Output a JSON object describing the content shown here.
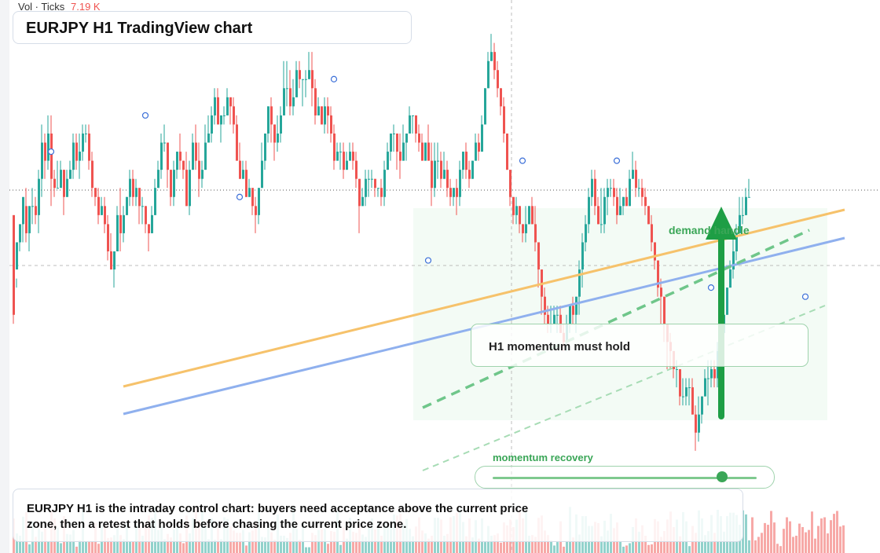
{
  "volume_label": "Vol · Ticks",
  "volume_value": "7.19 K",
  "title": "EURJPY H1 TradingView chart",
  "callout": "H1 momentum must hold",
  "demand_label": "demand handle",
  "momentum_label": "momentum recovery",
  "momentum_level": 0.87,
  "note": "EURJPY H1 is the intraday control chart: buyers need acceptance above the current price zone, then a retest that holds before chasing the current price zone.",
  "colors": {
    "up": "#26a69a",
    "down": "#ef5350",
    "orange_trend": "#f6c26b",
    "blue_trend": "#8fb0ee",
    "green": "#3aa657"
  },
  "icons": {
    "arrow": "arrow-up-icon"
  },
  "chart_data": {
    "type": "candlestick",
    "volume_unit": "Ticks",
    "candles": [
      [
        0.4,
        -0.7,
        -0.2,
        -0.8
      ],
      [
        -0.2,
        0.1,
        -0.3,
        -0.4
      ],
      [
        0.1,
        0.3,
        0.2,
        0.0
      ],
      [
        0.3,
        0.6,
        0.5,
        0.1
      ],
      [
        0.5,
        0.2,
        0.7,
        0.1
      ],
      [
        0.2,
        0.5,
        0.5,
        0.0
      ],
      [
        0.5,
        0.5,
        0.7,
        0.3
      ],
      [
        0.5,
        0.4,
        0.6,
        0.3
      ],
      [
        0.4,
        0.8,
        0.9,
        0.2
      ],
      [
        0.8,
        1.2,
        1.4,
        0.6
      ],
      [
        1.2,
        1.0,
        1.3,
        0.8
      ],
      [
        1.0,
        1.3,
        1.5,
        0.9
      ],
      [
        1.3,
        0.8,
        1.5,
        0.5
      ],
      [
        0.8,
        0.7,
        0.9,
        0.6
      ],
      [
        0.7,
        0.7,
        1.0,
        0.7
      ],
      [
        0.7,
        0.9,
        1.0,
        0.8
      ],
      [
        0.9,
        0.6,
        0.9,
        0.4
      ],
      [
        0.6,
        0.8,
        0.9,
        0.6
      ],
      [
        0.8,
        0.9,
        1.0,
        0.8
      ],
      [
        0.9,
        1.2,
        1.3,
        0.8
      ],
      [
        1.2,
        1.0,
        1.3,
        0.9
      ],
      [
        1.0,
        1.1,
        1.3,
        0.8
      ],
      [
        1.1,
        1.3,
        1.4,
        1.0
      ],
      [
        1.3,
        1.3,
        1.4,
        1.2
      ],
      [
        1.3,
        1.0,
        1.4,
        0.9
      ],
      [
        1.0,
        0.7,
        1.1,
        0.6
      ],
      [
        0.7,
        0.6,
        0.7,
        0.5
      ],
      [
        0.6,
        0.4,
        0.7,
        0.3
      ],
      [
        0.4,
        0.5,
        0.6,
        0.4
      ],
      [
        0.5,
        0.3,
        0.6,
        0.2
      ],
      [
        0.3,
        0.0,
        0.4,
        -0.1
      ],
      [
        0.0,
        -0.2,
        0.2,
        -0.2
      ],
      [
        -0.2,
        0.0,
        0.0,
        -0.4
      ],
      [
        0.0,
        0.4,
        0.5,
        0.0
      ],
      [
        0.4,
        0.2,
        0.7,
        0.0
      ],
      [
        0.2,
        0.4,
        0.5,
        0.1
      ],
      [
        0.4,
        0.6,
        0.6,
        0.4
      ],
      [
        0.6,
        0.8,
        0.9,
        0.5
      ],
      [
        0.8,
        0.6,
        0.9,
        0.5
      ],
      [
        0.6,
        0.7,
        0.8,
        0.5
      ],
      [
        0.7,
        0.5,
        0.7,
        0.3
      ],
      [
        0.5,
        0.5,
        0.6,
        0.3
      ],
      [
        0.5,
        0.3,
        0.5,
        0.2
      ],
      [
        0.3,
        0.2,
        0.3,
        0.0
      ],
      [
        0.2,
        0.4,
        0.5,
        0.2
      ],
      [
        0.4,
        0.7,
        0.8,
        0.4
      ],
      [
        0.7,
        0.9,
        1.0,
        0.7
      ],
      [
        0.9,
        1.2,
        1.3,
        0.8
      ],
      [
        1.2,
        1.2,
        1.4,
        1.1
      ],
      [
        1.2,
        0.9,
        1.2,
        0.7
      ],
      [
        0.9,
        0.6,
        0.9,
        0.5
      ],
      [
        0.6,
        0.9,
        1.0,
        0.5
      ],
      [
        0.9,
        1.1,
        1.1,
        0.8
      ],
      [
        1.1,
        1.0,
        1.3,
        0.9
      ],
      [
        1.0,
        0.9,
        1.0,
        0.8
      ],
      [
        0.9,
        0.5,
        1.1,
        0.5
      ],
      [
        0.5,
        0.9,
        1.0,
        0.4
      ],
      [
        0.9,
        1.2,
        1.3,
        0.9
      ],
      [
        1.2,
        1.0,
        1.4,
        0.9
      ],
      [
        1.0,
        0.8,
        1.2,
        0.6
      ],
      [
        0.8,
        0.9,
        1.0,
        0.7
      ],
      [
        0.9,
        1.2,
        1.4,
        0.9
      ],
      [
        1.2,
        1.3,
        1.5,
        1.2
      ],
      [
        1.3,
        1.5,
        1.6,
        1.2
      ],
      [
        1.5,
        1.7,
        1.8,
        1.4
      ],
      [
        1.7,
        1.4,
        1.8,
        1.4
      ],
      [
        1.4,
        1.5,
        1.5,
        1.2
      ],
      [
        1.5,
        1.5,
        1.6,
        1.4
      ],
      [
        1.5,
        1.7,
        1.8,
        1.5
      ],
      [
        1.7,
        1.6,
        1.7,
        1.4
      ],
      [
        1.6,
        1.4,
        1.7,
        1.3
      ],
      [
        1.4,
        1.0,
        1.5,
        1.0
      ],
      [
        1.0,
        0.8,
        1.2,
        0.8
      ],
      [
        0.8,
        0.9,
        1.0,
        0.8
      ],
      [
        0.9,
        0.6,
        1.0,
        0.6
      ],
      [
        0.6,
        0.7,
        0.8,
        0.6
      ],
      [
        0.7,
        0.5,
        0.7,
        0.4
      ],
      [
        0.5,
        0.4,
        0.6,
        0.2
      ],
      [
        0.4,
        0.7,
        0.7,
        0.3
      ],
      [
        0.7,
        1.0,
        1.2,
        0.7
      ],
      [
        1.0,
        1.3,
        1.3,
        0.9
      ],
      [
        1.3,
        1.6,
        1.6,
        1.2
      ],
      [
        1.6,
        1.4,
        1.7,
        1.2
      ],
      [
        1.4,
        1.2,
        1.4,
        1.0
      ],
      [
        1.2,
        1.3,
        1.5,
        1.1
      ],
      [
        1.3,
        1.5,
        1.6,
        1.2
      ],
      [
        1.5,
        1.8,
        2.1,
        1.5
      ],
      [
        1.8,
        1.8,
        2.1,
        1.6
      ],
      [
        1.8,
        1.6,
        2.0,
        1.5
      ],
      [
        1.6,
        1.7,
        1.9,
        1.5
      ],
      [
        1.7,
        2.0,
        2.1,
        1.7
      ],
      [
        2.0,
        1.9,
        2.1,
        1.8
      ],
      [
        1.9,
        1.9,
        1.9,
        1.6
      ],
      [
        1.9,
        1.9,
        2.0,
        1.7
      ],
      [
        1.9,
        2.0,
        2.2,
        1.9
      ],
      [
        2.0,
        1.8,
        2.2,
        1.6
      ],
      [
        1.8,
        1.5,
        1.9,
        1.4
      ],
      [
        1.5,
        1.6,
        1.7,
        1.5
      ],
      [
        1.6,
        1.4,
        1.6,
        1.4
      ],
      [
        1.4,
        1.6,
        1.7,
        1.3
      ],
      [
        1.6,
        1.5,
        1.7,
        1.3
      ],
      [
        1.5,
        1.3,
        1.6,
        1.2
      ],
      [
        1.3,
        1.0,
        1.4,
        0.9
      ],
      [
        1.0,
        1.1,
        1.2,
        1.0
      ],
      [
        1.1,
        1.1,
        1.2,
        0.9
      ],
      [
        1.1,
        0.9,
        1.2,
        0.8
      ],
      [
        0.9,
        1.0,
        1.1,
        0.9
      ],
      [
        1.0,
        1.1,
        1.2,
        1.0
      ],
      [
        1.1,
        1.0,
        1.2,
        0.9
      ],
      [
        1.0,
        0.8,
        1.1,
        0.7
      ],
      [
        0.8,
        0.5,
        0.8,
        0.2
      ],
      [
        0.5,
        0.6,
        0.7,
        0.5
      ],
      [
        0.6,
        0.8,
        0.9,
        0.5
      ],
      [
        0.8,
        0.8,
        0.9,
        0.6
      ],
      [
        0.8,
        0.8,
        0.9,
        0.7
      ],
      [
        0.8,
        0.7,
        0.8,
        0.6
      ],
      [
        0.7,
        0.7,
        0.7,
        0.6
      ],
      [
        0.7,
        0.6,
        0.8,
        0.5
      ],
      [
        0.6,
        0.9,
        1.0,
        0.5
      ],
      [
        0.9,
        1.1,
        1.2,
        0.9
      ],
      [
        1.1,
        1.3,
        1.3,
        1.0
      ],
      [
        1.3,
        1.3,
        1.4,
        1.1
      ],
      [
        1.3,
        1.1,
        1.3,
        0.9
      ],
      [
        1.1,
        1.0,
        1.3,
        0.8
      ],
      [
        1.0,
        1.2,
        1.4,
        1.0
      ],
      [
        1.2,
        1.3,
        1.3,
        1.0
      ],
      [
        1.3,
        1.5,
        1.6,
        1.3
      ],
      [
        1.5,
        1.5,
        1.5,
        1.3
      ],
      [
        1.5,
        1.3,
        1.5,
        1.2
      ],
      [
        1.3,
        1.2,
        1.4,
        1.1
      ],
      [
        1.2,
        1.0,
        1.3,
        1.0
      ],
      [
        1.0,
        1.2,
        1.2,
        1.0
      ],
      [
        1.2,
        1.0,
        1.4,
        1.0
      ],
      [
        1.0,
        0.7,
        1.2,
        0.5
      ],
      [
        0.7,
        1.0,
        1.2,
        0.6
      ],
      [
        1.0,
        1.0,
        1.2,
        0.8
      ],
      [
        1.0,
        0.8,
        1.1,
        0.7
      ],
      [
        0.8,
        0.9,
        1.1,
        0.8
      ],
      [
        0.9,
        0.7,
        1.0,
        0.6
      ],
      [
        0.7,
        0.6,
        0.8,
        0.5
      ],
      [
        0.6,
        0.7,
        0.7,
        0.5
      ],
      [
        0.7,
        0.6,
        0.8,
        0.4
      ],
      [
        0.6,
        0.9,
        1.0,
        0.5
      ],
      [
        0.9,
        1.1,
        1.1,
        0.8
      ],
      [
        1.1,
        0.9,
        1.2,
        0.8
      ],
      [
        0.9,
        0.8,
        1.0,
        0.7
      ],
      [
        0.8,
        1.0,
        1.0,
        0.8
      ],
      [
        1.0,
        1.2,
        1.3,
        1.0
      ],
      [
        1.2,
        1.1,
        1.3,
        1.0
      ],
      [
        1.1,
        1.4,
        1.5,
        1.1
      ],
      [
        1.4,
        1.8,
        1.8,
        1.4
      ],
      [
        1.8,
        2.1,
        2.2,
        1.8
      ],
      [
        2.1,
        2.2,
        2.4,
        2.1
      ],
      [
        2.2,
        2.0,
        2.3,
        1.9
      ],
      [
        2.0,
        1.8,
        2.1,
        1.7
      ],
      [
        1.8,
        1.6,
        1.8,
        1.5
      ],
      [
        1.6,
        1.3,
        1.7,
        1.2
      ],
      [
        1.3,
        0.9,
        1.3,
        0.9
      ],
      [
        0.9,
        0.6,
        0.9,
        0.5
      ],
      [
        0.6,
        0.4,
        0.6,
        0.3
      ],
      [
        0.4,
        0.5,
        0.6,
        0.3
      ],
      [
        0.5,
        0.3,
        0.5,
        0.2
      ],
      [
        0.3,
        0.2,
        0.3,
        0.1
      ],
      [
        0.2,
        0.3,
        0.5,
        0.1
      ],
      [
        0.3,
        0.5,
        0.5,
        0.3
      ],
      [
        0.5,
        0.3,
        0.6,
        0.3
      ],
      [
        0.3,
        0.1,
        0.5,
        0.0
      ],
      [
        0.1,
        -0.2,
        0.1,
        -0.4
      ],
      [
        -0.2,
        -0.5,
        -0.2,
        -0.7
      ],
      [
        -0.5,
        -0.7,
        -0.4,
        -0.8
      ],
      [
        -0.7,
        -0.8,
        -0.6,
        -0.9
      ],
      [
        -0.8,
        -0.8,
        -0.6,
        -0.9
      ],
      [
        -0.8,
        -0.7,
        -0.6,
        -0.8
      ],
      [
        -0.7,
        -0.7,
        -0.6,
        -0.9
      ],
      [
        -0.7,
        -0.9,
        -0.6,
        -0.9
      ],
      [
        -0.9,
        -1.0,
        -0.8,
        -1.1
      ],
      [
        -1.0,
        -0.8,
        -0.7,
        -1.1
      ],
      [
        -0.8,
        -0.6,
        -0.6,
        -0.9
      ],
      [
        -0.6,
        -0.7,
        -0.5,
        -0.8
      ],
      [
        -0.7,
        -0.5,
        -0.5,
        -0.9
      ],
      [
        -0.5,
        -0.2,
        -0.1,
        -0.7
      ],
      [
        -0.2,
        0.1,
        0.2,
        -0.4
      ],
      [
        0.1,
        0.3,
        0.4,
        0.0
      ],
      [
        0.3,
        0.6,
        0.7,
        0.2
      ],
      [
        0.6,
        0.8,
        0.9,
        0.5
      ],
      [
        0.8,
        0.5,
        0.9,
        0.4
      ],
      [
        0.5,
        0.3,
        0.6,
        0.3
      ],
      [
        0.3,
        0.3,
        0.7,
        0.2
      ],
      [
        0.3,
        0.6,
        0.7,
        0.2
      ],
      [
        0.6,
        0.7,
        0.8,
        0.4
      ],
      [
        0.7,
        0.7,
        0.8,
        0.6
      ],
      [
        0.7,
        0.6,
        0.8,
        0.5
      ],
      [
        0.6,
        0.4,
        0.7,
        0.3
      ],
      [
        0.4,
        0.5,
        0.7,
        0.4
      ],
      [
        0.5,
        0.6,
        0.6,
        0.4
      ],
      [
        0.6,
        0.5,
        0.7,
        0.5
      ],
      [
        0.5,
        0.8,
        0.9,
        0.5
      ],
      [
        0.8,
        0.9,
        1.1,
        0.8
      ],
      [
        0.9,
        0.7,
        1.0,
        0.6
      ],
      [
        0.7,
        0.7,
        0.8,
        0.6
      ],
      [
        0.7,
        0.6,
        0.8,
        0.5
      ],
      [
        0.6,
        0.5,
        0.7,
        0.4
      ],
      [
        0.5,
        0.3,
        0.5,
        0.3
      ],
      [
        0.3,
        0.1,
        0.4,
        0.0
      ],
      [
        0.1,
        -0.1,
        0.1,
        -0.2
      ],
      [
        -0.1,
        -0.4,
        -0.1,
        -0.5
      ],
      [
        -0.4,
        -0.5,
        -0.3,
        -0.8
      ],
      [
        -0.5,
        -0.8,
        -0.5,
        -1.0
      ],
      [
        -0.8,
        -1.0,
        -0.8,
        -1.3
      ],
      [
        -1.0,
        -1.1,
        -0.9,
        -1.3
      ],
      [
        -1.1,
        -1.3,
        -1.1,
        -1.4
      ],
      [
        -1.3,
        -1.3,
        -1.2,
        -1.5
      ],
      [
        -1.3,
        -1.6,
        -1.3,
        -1.7
      ],
      [
        -1.6,
        -1.6,
        -1.4,
        -1.7
      ],
      [
        -1.6,
        -1.5,
        -1.4,
        -1.7
      ],
      [
        -1.5,
        -1.5,
        -1.4,
        -1.7
      ],
      [
        -1.5,
        -1.8,
        -1.4,
        -1.8
      ],
      [
        -1.8,
        -2.0,
        -1.7,
        -2.2
      ],
      [
        -2.0,
        -1.8,
        -1.6,
        -2.1
      ],
      [
        -1.8,
        -1.6,
        -1.6,
        -1.9
      ],
      [
        -1.6,
        -1.4,
        -1.3,
        -1.6
      ],
      [
        -1.4,
        -1.4,
        -1.2,
        -1.7
      ],
      [
        -1.4,
        -1.3,
        -1.2,
        -1.5
      ],
      [
        -1.3,
        -1.4,
        -1.2,
        -1.5
      ],
      [
        -1.4,
        -1.1,
        -1.0,
        -1.5
      ],
      [
        -1.1,
        -0.9,
        -0.9,
        -1.3
      ],
      [
        -0.9,
        -0.7,
        -0.5,
        -0.9
      ],
      [
        -0.7,
        -0.4,
        -0.4,
        -0.7
      ],
      [
        -0.4,
        -0.2,
        -0.1,
        -0.4
      ],
      [
        -0.2,
        0.0,
        0.2,
        -0.3
      ],
      [
        0.0,
        0.2,
        0.3,
        -0.1
      ],
      [
        0.2,
        0.4,
        0.6,
        0.2
      ],
      [
        0.4,
        0.4,
        0.6,
        0.3
      ],
      [
        0.4,
        0.6,
        0.7,
        0.4
      ],
      [
        0.6,
        0.6,
        0.8,
        0.6
      ]
    ],
    "volume": [
      60,
      34,
      30,
      63,
      71,
      15,
      55,
      28,
      42,
      37,
      43,
      20,
      73,
      60,
      44,
      17,
      64,
      33,
      32,
      40,
      11,
      22,
      80,
      20,
      21,
      20,
      52,
      16,
      48,
      48,
      26,
      27,
      31,
      43,
      31,
      24,
      51,
      21,
      20,
      49,
      55,
      30,
      53,
      65,
      61,
      79,
      40,
      46,
      24,
      33,
      27,
      41,
      45,
      34,
      17,
      65,
      34,
      61,
      79,
      57,
      72,
      46,
      24,
      60,
      23,
      43,
      24,
      62,
      59,
      46,
      39,
      35,
      35,
      40,
      13,
      36,
      39,
      52,
      72,
      28,
      27,
      53,
      36,
      23,
      67,
      30,
      30,
      26,
      35,
      80,
      42,
      23,
      52,
      10,
      10,
      35,
      31,
      40,
      41,
      42,
      16,
      38,
      37,
      73,
      14,
      44,
      25,
      61,
      37,
      35,
      46,
      32,
      28,
      44,
      60,
      41,
      54,
      30,
      52,
      46,
      45,
      67,
      65,
      68,
      49,
      59,
      42,
      29,
      46,
      62,
      39,
      34,
      25,
      30,
      61,
      61,
      58,
      30,
      33,
      62,
      64,
      70,
      78,
      54,
      29,
      60,
      27,
      57,
      25,
      60,
      19,
      47,
      30,
      31,
      34,
      18,
      53,
      48,
      58,
      45,
      58,
      76,
      60,
      71,
      30,
      31,
      28,
      61,
      65,
      39,
      31,
      22,
      13,
      19,
      55,
      11,
      21,
      80,
      27,
      67,
      32,
      64,
      64,
      47,
      47,
      54,
      52,
      29,
      56,
      39,
      68,
      43,
      53,
      21,
      11,
      13,
      17,
      45,
      60,
      37,
      48,
      30,
      14,
      15,
      59,
      55,
      28,
      38,
      58,
      72,
      45,
      58,
      29,
      71,
      55,
      12,
      47,
      35,
      74,
      60,
      31,
      38,
      66,
      35,
      75,
      64,
      37,
      64,
      70,
      70,
      66,
      49,
      74,
      67,
      22,
      62,
      22,
      28,
      35,
      52,
      49,
      73,
      53,
      16,
      12,
      42,
      62,
      55,
      28,
      30,
      51,
      45,
      36,
      40,
      72,
      25,
      47,
      60,
      62,
      34,
      57,
      68,
      73,
      46,
      48
    ],
    "markers": [
      [
        12,
        1.1
      ],
      [
        42,
        1.5
      ],
      [
        72,
        0.6
      ],
      [
        102,
        1.9
      ],
      [
        132,
        -0.1
      ],
      [
        162,
        1.0
      ],
      [
        192,
        1.0
      ],
      [
        222,
        -0.4
      ],
      [
        252,
        -0.5
      ]
    ],
    "volume_max": 150,
    "ylim": [
      -2.6,
      2.6
    ]
  }
}
